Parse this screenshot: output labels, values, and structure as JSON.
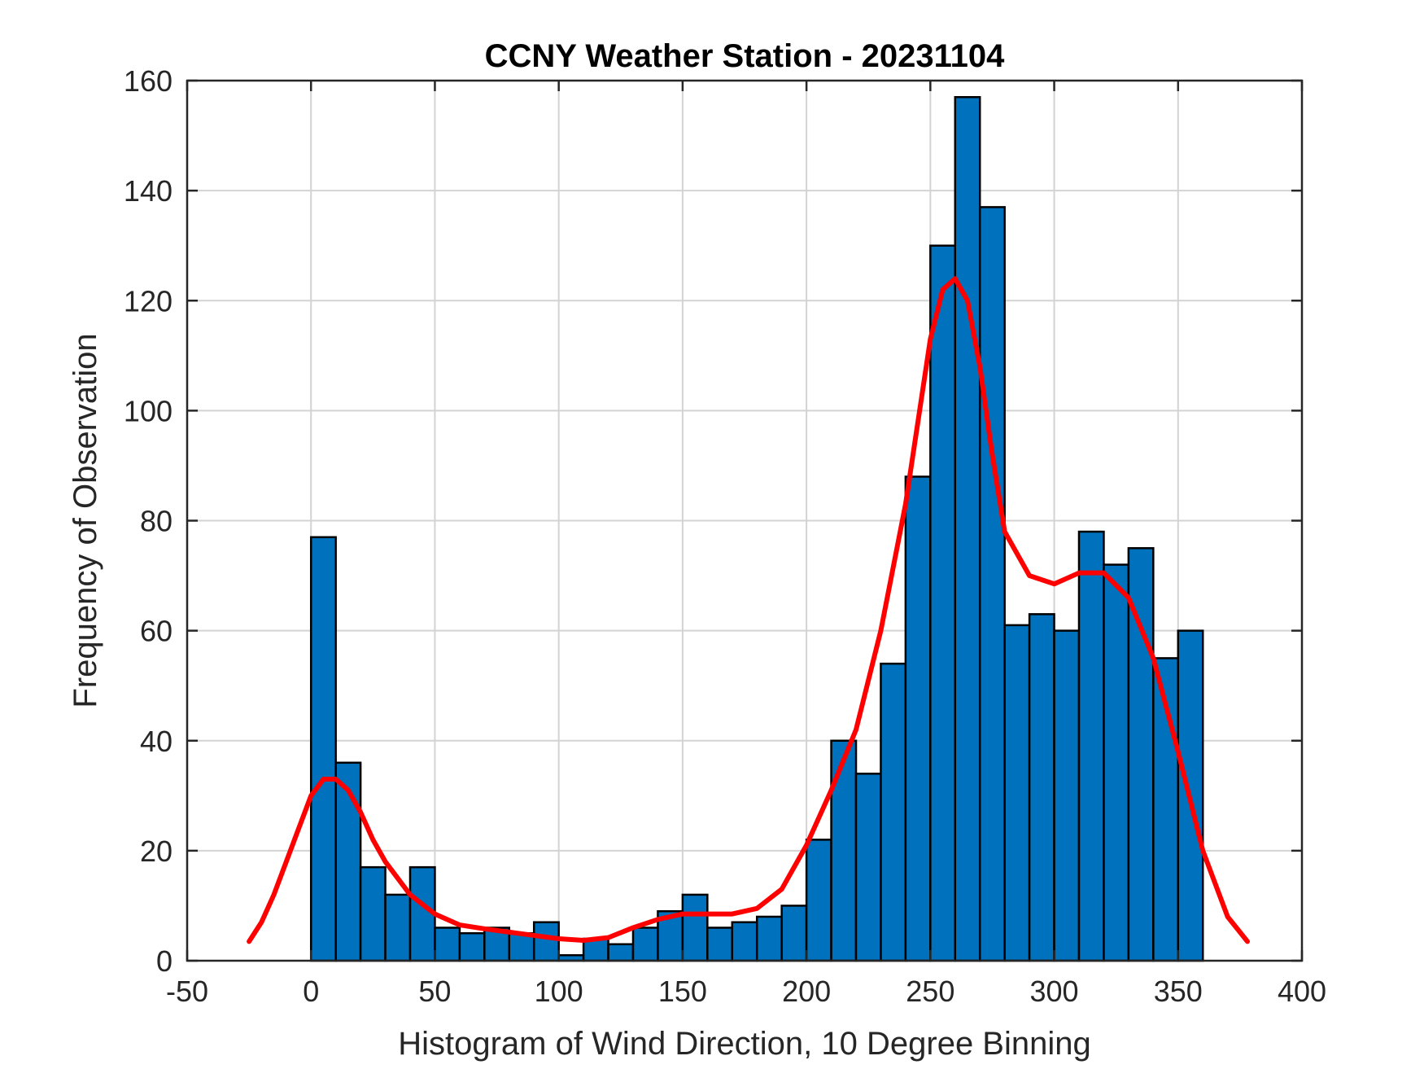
{
  "chart_data": {
    "type": "bar",
    "title": "CCNY Weather Station - 20231104",
    "xlabel": "Histogram of Wind Direction, 10 Degree Binning",
    "ylabel": "Frequency of Observation",
    "xlim": [
      -50,
      400
    ],
    "ylim": [
      0,
      160
    ],
    "xticks": [
      -50,
      0,
      50,
      100,
      150,
      200,
      250,
      300,
      350,
      400
    ],
    "yticks": [
      0,
      20,
      40,
      60,
      80,
      100,
      120,
      140,
      160
    ],
    "grid": true,
    "bin_width": 10,
    "bin_edges_start": [
      0,
      10,
      20,
      30,
      40,
      50,
      60,
      70,
      80,
      90,
      100,
      110,
      120,
      130,
      140,
      150,
      160,
      170,
      180,
      190,
      200,
      210,
      220,
      230,
      240,
      250,
      260,
      270,
      280,
      290,
      300,
      310,
      320,
      330,
      340,
      350
    ],
    "values": [
      77,
      36,
      17,
      12,
      17,
      6,
      5,
      6,
      5,
      7,
      1,
      4,
      3,
      6,
      9,
      12,
      6,
      7,
      8,
      10,
      22,
      40,
      34,
      54,
      88,
      130,
      157,
      137,
      61,
      63,
      60,
      78,
      72,
      75,
      55,
      60
    ],
    "bar_color": "#0072BD",
    "fit_curve": {
      "color": "#FF0000",
      "x": [
        -25,
        -20,
        -15,
        -10,
        -5,
        0,
        5,
        10,
        15,
        20,
        25,
        30,
        40,
        50,
        60,
        70,
        80,
        90,
        100,
        110,
        120,
        130,
        140,
        150,
        160,
        170,
        180,
        190,
        200,
        210,
        220,
        230,
        240,
        245,
        250,
        255,
        260,
        265,
        270,
        275,
        280,
        290,
        300,
        310,
        320,
        330,
        340,
        350,
        360,
        370,
        378
      ],
      "y": [
        3.5,
        7,
        12,
        18,
        24,
        30,
        33,
        33,
        31,
        27,
        22,
        18,
        12,
        8.5,
        6.5,
        5.8,
        5.2,
        4.6,
        4,
        3.7,
        4.2,
        6,
        7.5,
        8.5,
        8.5,
        8.5,
        9.5,
        13,
        21,
        31,
        42,
        60,
        83,
        98,
        113,
        122,
        124,
        120,
        108,
        92,
        78,
        70,
        68.5,
        70.5,
        70.5,
        66,
        55,
        38,
        20,
        8,
        3.5
      ]
    }
  }
}
